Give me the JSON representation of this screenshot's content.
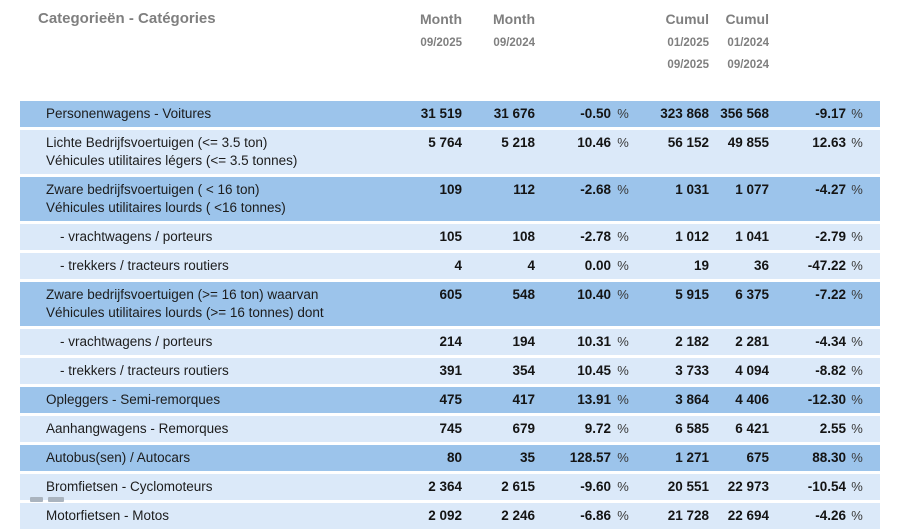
{
  "header": {
    "category_column_label": "Categorieën - Catégories",
    "columns": [
      {
        "title": "Month",
        "subs": [
          "09/2025"
        ]
      },
      {
        "title": "Month",
        "subs": [
          "09/2024"
        ]
      },
      {
        "title": "Cumul",
        "subs": [
          "01/2025",
          "09/2025"
        ]
      },
      {
        "title": "Cumul",
        "subs": [
          "01/2024",
          "09/2024"
        ]
      }
    ]
  },
  "table": {
    "percent_symbol": "%",
    "rows": [
      {
        "label1": "Personenwagens - Voitures",
        "label2": "",
        "indent": false,
        "shade": "dark",
        "m_cur": "31 519",
        "m_prev": "31 676",
        "m_pct": "-0.50",
        "c_cur": "323 868",
        "c_prev": "356 568",
        "c_pct": "-9.17"
      },
      {
        "label1": "Lichte Bedrijfsvoertuigen (<= 3.5 ton)",
        "label2": "Véhicules utilitaires légers (<= 3.5 tonnes)",
        "indent": false,
        "shade": "light",
        "m_cur": "5 764",
        "m_prev": "5 218",
        "m_pct": "10.46",
        "c_cur": "56 152",
        "c_prev": "49 855",
        "c_pct": "12.63"
      },
      {
        "label1": "Zware bedrijfsvoertuigen ( < 16 ton)",
        "label2": "Véhicules utilitaires lourds ( <16 tonnes)",
        "indent": false,
        "shade": "dark",
        "m_cur": "109",
        "m_prev": "112",
        "m_pct": "-2.68",
        "c_cur": "1 031",
        "c_prev": "1 077",
        "c_pct": "-4.27"
      },
      {
        "label1": "- vrachtwagens / porteurs",
        "label2": "",
        "indent": true,
        "shade": "light",
        "m_cur": "105",
        "m_prev": "108",
        "m_pct": "-2.78",
        "c_cur": "1 012",
        "c_prev": "1 041",
        "c_pct": "-2.79"
      },
      {
        "label1": "- trekkers / tracteurs routiers",
        "label2": "",
        "indent": true,
        "shade": "light",
        "m_cur": "4",
        "m_prev": "4",
        "m_pct": "0.00",
        "c_cur": "19",
        "c_prev": "36",
        "c_pct": "-47.22"
      },
      {
        "label1": "Zware bedrijfsvoertuigen (>= 16 ton) waarvan",
        "label2": "Véhicules utilitaires lourds (>= 16 tonnes) dont",
        "indent": false,
        "shade": "dark",
        "m_cur": "605",
        "m_prev": "548",
        "m_pct": "10.40",
        "c_cur": "5 915",
        "c_prev": "6 375",
        "c_pct": "-7.22"
      },
      {
        "label1": "- vrachtwagens / porteurs",
        "label2": "",
        "indent": true,
        "shade": "light",
        "m_cur": "214",
        "m_prev": "194",
        "m_pct": "10.31",
        "c_cur": "2 182",
        "c_prev": "2 281",
        "c_pct": "-4.34"
      },
      {
        "label1": "- trekkers / tracteurs routiers",
        "label2": "",
        "indent": true,
        "shade": "light",
        "m_cur": "391",
        "m_prev": "354",
        "m_pct": "10.45",
        "c_cur": "3 733",
        "c_prev": "4 094",
        "c_pct": "-8.82"
      },
      {
        "label1": "Opleggers - Semi-remorques",
        "label2": "",
        "indent": false,
        "shade": "dark",
        "m_cur": "475",
        "m_prev": "417",
        "m_pct": "13.91",
        "c_cur": "3 864",
        "c_prev": "4 406",
        "c_pct": "-12.30"
      },
      {
        "label1": "Aanhangwagens - Remorques",
        "label2": "",
        "indent": false,
        "shade": "light",
        "m_cur": "745",
        "m_prev": "679",
        "m_pct": "9.72",
        "c_cur": "6 585",
        "c_prev": "6 421",
        "c_pct": "2.55"
      },
      {
        "label1": "Autobus(sen) / Autocars",
        "label2": "",
        "indent": false,
        "shade": "dark",
        "m_cur": "80",
        "m_prev": "35",
        "m_pct": "128.57",
        "c_cur": "1 271",
        "c_prev": "675",
        "c_pct": "88.30"
      },
      {
        "label1": "Bromfietsen - Cyclomoteurs",
        "label2": "",
        "indent": false,
        "shade": "light",
        "m_cur": "2 364",
        "m_prev": "2 615",
        "m_pct": "-9.60",
        "c_cur": "20 551",
        "c_prev": "22 973",
        "c_pct": "-10.54"
      },
      {
        "label1": "Motorfietsen - Motos",
        "label2": "",
        "indent": false,
        "shade": "light",
        "m_cur": "2 092",
        "m_prev": "2 246",
        "m_pct": "-6.86",
        "c_cur": "21 728",
        "c_prev": "22 694",
        "c_pct": "-4.26"
      }
    ]
  },
  "colors": {
    "row_shade_dark": "#9cc4eb",
    "row_shade_light": "#dbe9f9",
    "header_text": "#7f7f7f",
    "body_text": "#1c1c1c"
  }
}
